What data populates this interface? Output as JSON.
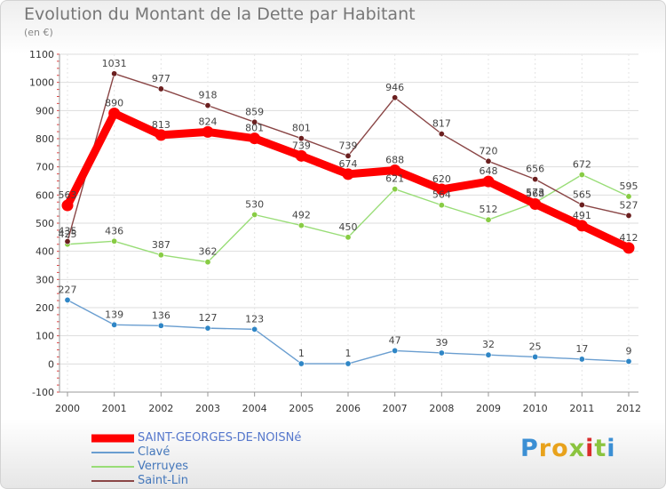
{
  "title": "Evolution du Montant de la Dette par Habitant",
  "subtitle": "(en €)",
  "logo": {
    "text": "Proxiti",
    "letter_colors": [
      "#3b8fd4",
      "#e8a21c",
      "#e8a21c",
      "#8bc43f",
      "#d92c2c",
      "#8bc43f",
      "#3b8fd4"
    ]
  },
  "chart_data": {
    "type": "line",
    "title": "Evolution du Montant de la Dette par Habitant",
    "subtitle": "(en €)",
    "xlabel": "",
    "ylabel": "",
    "categories": [
      "2000",
      "2001",
      "2002",
      "2003",
      "2004",
      "2005",
      "2006",
      "2007",
      "2008",
      "2009",
      "2010",
      "2011",
      "2012"
    ],
    "yticks": [
      -100,
      0,
      100,
      200,
      300,
      400,
      500,
      600,
      700,
      800,
      900,
      1000,
      1100
    ],
    "ylim": [
      -100,
      1100
    ],
    "grid": "horizontal",
    "legend": "bottom-left",
    "series": [
      {
        "name": "SAINT-GEORGES-DE-NOISNé",
        "color": "#ff0000",
        "marker_color": "#ff0000",
        "values": [
          563,
          890,
          813,
          824,
          801,
          739,
          674,
          688,
          620,
          648,
          568,
          491,
          412
        ],
        "labels": [
          "563",
          "890",
          "813",
          "824",
          "801",
          "739",
          "674",
          "688",
          "620",
          "648",
          "568",
          "491",
          "412"
        ],
        "emphasis": true
      },
      {
        "name": "Clavé",
        "color": "#6a9ed0",
        "marker_color": "#2f86c6",
        "values": [
          227,
          139,
          136,
          127,
          123,
          1,
          1,
          47,
          39,
          32,
          25,
          17,
          9
        ],
        "labels": [
          "227",
          "139",
          "136",
          "127",
          "123",
          "1",
          "1",
          "47",
          "39",
          "32",
          "25",
          "17",
          "9"
        ]
      },
      {
        "name": "Verruyes",
        "color": "#99dd77",
        "marker_color": "#88cc44",
        "values": [
          425,
          436,
          387,
          362,
          530,
          492,
          450,
          621,
          564,
          512,
          573,
          672,
          595
        ],
        "labels": [
          "425",
          "436",
          "387",
          "362",
          "530",
          "492",
          "450",
          "621",
          "564",
          "512",
          "573",
          "672",
          "595"
        ]
      },
      {
        "name": "Saint-Lin",
        "color": "#8a4646",
        "marker_color": "#6b1f1f",
        "values": [
          435,
          1031,
          977,
          918,
          859,
          801,
          739,
          946,
          817,
          720,
          656,
          565,
          527
        ],
        "labels": [
          "435",
          "1031",
          "977",
          "918",
          "859",
          "801",
          "739",
          "946",
          "817",
          "720",
          "656",
          "565",
          "527"
        ]
      }
    ]
  }
}
